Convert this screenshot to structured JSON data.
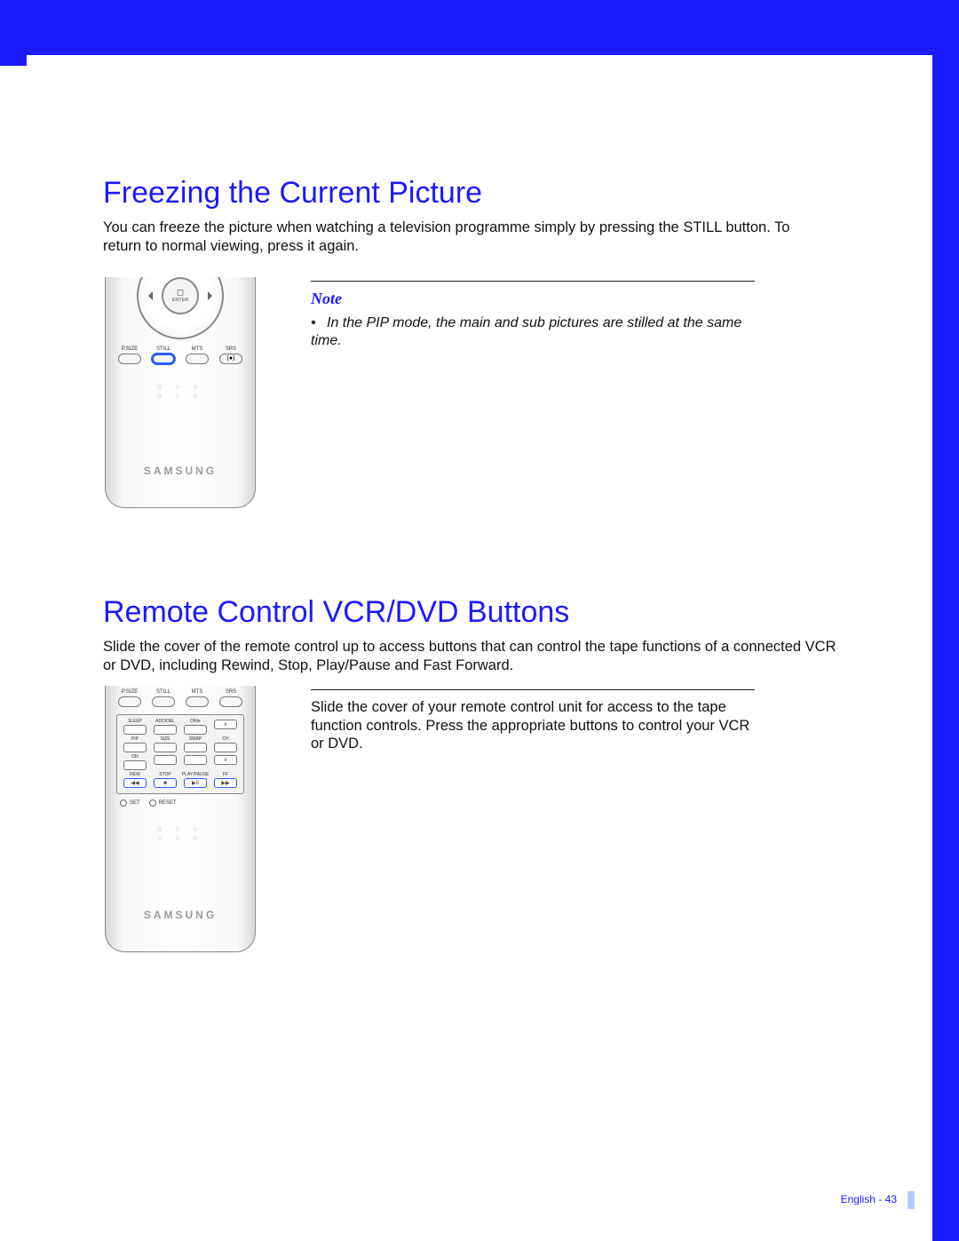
{
  "colors": {
    "accent": "#1a1aff",
    "text": "#111111",
    "page_bg": "#ffffff"
  },
  "section1": {
    "title": "Freezing the Current Picture",
    "body": "You can freeze the picture when watching a television programme simply by pressing the STILL button. To return to normal viewing, press it again."
  },
  "note": {
    "label": "Note",
    "bullet": "•",
    "body": "In the PIP mode, the main and sub pictures are stilled at the same time."
  },
  "section2": {
    "title": "Remote Control VCR/DVD Buttons",
    "body": "Slide the cover of the remote control up to access buttons that can control the tape functions of a connected VCR or DVD, including Rewind, Stop, Play/Pause and Fast Forward."
  },
  "instruction": {
    "body": "Slide the cover of your remote control unit for access to the tape function controls. Press the appropriate buttons to control your VCR or DVD."
  },
  "remote1": {
    "brand": "SAMSUNG",
    "enter_label": "ENTER",
    "row": [
      {
        "label": "P.SIZE",
        "highlight": false
      },
      {
        "label": "STILL",
        "highlight": true
      },
      {
        "label": "MTS",
        "highlight": false
      },
      {
        "label": "SRS",
        "highlight": false,
        "srs_glyph": "(●)"
      }
    ]
  },
  "remote2": {
    "brand": "SAMSUNG",
    "top_row": [
      {
        "label": "P.SIZE"
      },
      {
        "label": "STILL"
      },
      {
        "label": "MTS"
      },
      {
        "label": "SRS"
      }
    ],
    "panel_rows": [
      {
        "highlight": false,
        "cells": [
          {
            "label": "SLEEP",
            "glyph": ""
          },
          {
            "label": "ADD/DEL",
            "glyph": ""
          },
          {
            "label": "DNIe",
            "glyph": ""
          },
          {
            "label": "",
            "glyph": "∧"
          }
        ]
      },
      {
        "highlight": false,
        "cells": [
          {
            "label": "PIP",
            "glyph": ""
          },
          {
            "label": "SIZE",
            "glyph": ""
          },
          {
            "label": "SWAP",
            "glyph": ""
          },
          {
            "label": "CH",
            "glyph": ""
          }
        ]
      },
      {
        "highlight": false,
        "cells": [
          {
            "label": "ON",
            "glyph": ""
          },
          {
            "label": "",
            "glyph": ""
          },
          {
            "label": "",
            "glyph": ""
          },
          {
            "label": "",
            "glyph": "∨"
          }
        ]
      },
      {
        "highlight": true,
        "cells": [
          {
            "label": "REW",
            "glyph": "◀◀"
          },
          {
            "label": "STOP",
            "glyph": "■"
          },
          {
            "label": "PLAY/PAUSE",
            "glyph": "▶II"
          },
          {
            "label": "FF",
            "glyph": "▶▶"
          }
        ]
      }
    ],
    "set_row": [
      {
        "label": "SET"
      },
      {
        "label": "RESET"
      }
    ]
  },
  "footer": {
    "text": "English - 43"
  }
}
